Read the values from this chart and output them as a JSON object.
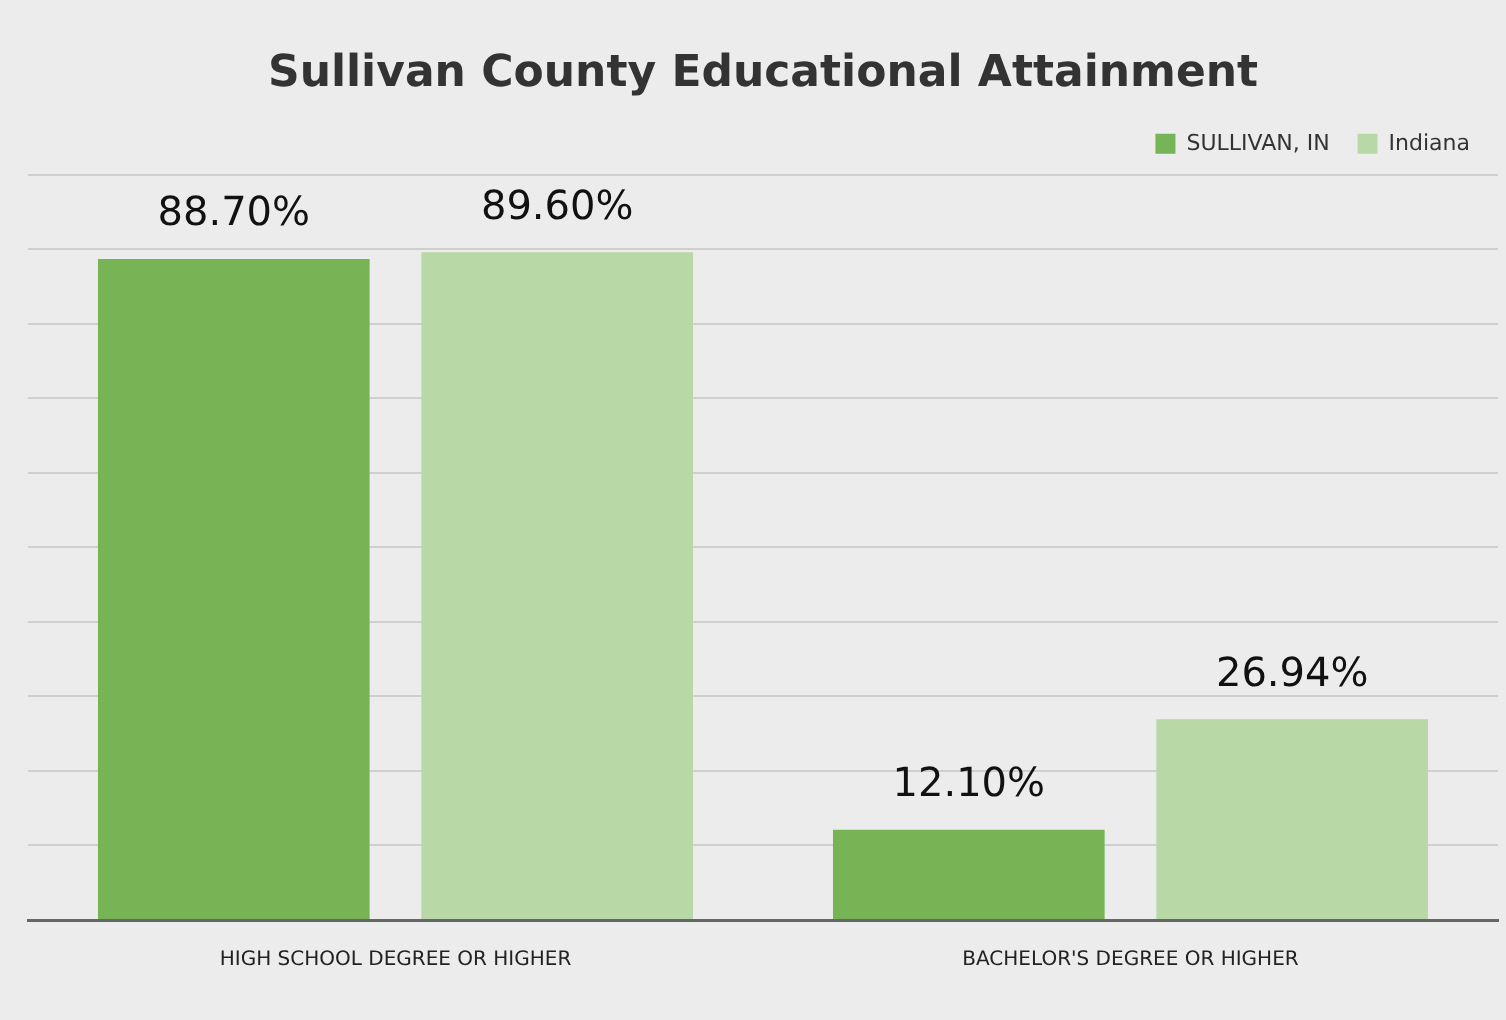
{
  "chart_data": {
    "type": "bar",
    "title": "Sullivan County Educational Attainment",
    "categories": [
      "HIGH SCHOOL DEGREE OR HIGHER",
      "BACHELOR'S DEGREE OR HIGHER"
    ],
    "series": [
      {
        "name": "SULLIVAN, IN",
        "color": "#76b455",
        "values": [
          88.7,
          12.1
        ],
        "value_labels": [
          "88.70%",
          "12.10%"
        ]
      },
      {
        "name": "Indiana",
        "color": "#b8d9a6",
        "values": [
          89.6,
          26.94
        ],
        "value_labels": [
          "89.60%",
          "26.94%"
        ]
      }
    ],
    "ylim": [
      0,
      100
    ],
    "yticks": [
      0,
      10,
      20,
      30,
      40,
      50,
      60,
      70,
      80,
      90,
      100
    ],
    "grid": "y",
    "legend": "top right",
    "tick_labels": "x"
  }
}
